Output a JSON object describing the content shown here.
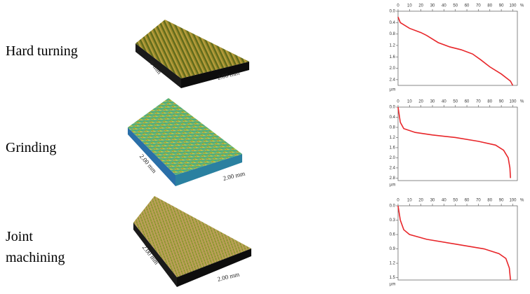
{
  "rows": [
    {
      "label": "Hard turning",
      "surface": {
        "edge_labels": [
          "2.00 mm",
          "2.00 mm"
        ]
      }
    },
    {
      "label": "Grinding",
      "surface": {
        "edge_labels": [
          "2.00 mm",
          "2.00 mm"
        ]
      }
    },
    {
      "label": "Joint machining",
      "surface": {
        "edge_labels": [
          "2.00 mm",
          "2.00 mm"
        ]
      }
    }
  ],
  "chart_data": [
    {
      "type": "line",
      "color": "#e8262a",
      "x_unit": "%",
      "y_unit": "µm",
      "xlim": [
        0,
        104
      ],
      "xticks": [
        0,
        10,
        20,
        30,
        40,
        50,
        60,
        70,
        80,
        90,
        100
      ],
      "ylim": [
        0,
        2.6
      ],
      "y_inverted": true,
      "yticks": [
        {
          "value": 0,
          "label": "0.0"
        },
        0.4,
        0.8,
        1.2,
        1.6,
        {
          "value": 2,
          "label": "2.0"
        },
        2.4
      ],
      "x": [
        0,
        2,
        10,
        20,
        25,
        35,
        45,
        55,
        65,
        72,
        80,
        90,
        98,
        100
      ],
      "values": [
        0.2,
        0.4,
        0.6,
        0.75,
        0.85,
        1.1,
        1.25,
        1.35,
        1.5,
        1.7,
        1.95,
        2.2,
        2.45,
        2.6
      ]
    },
    {
      "type": "line",
      "color": "#e8262a",
      "x_unit": "%",
      "y_unit": "µm",
      "xlim": [
        0,
        104
      ],
      "xticks": [
        0,
        10,
        20,
        30,
        40,
        50,
        60,
        70,
        80,
        90,
        100
      ],
      "ylim": [
        0,
        2.9
      ],
      "y_inverted": true,
      "yticks": [
        {
          "value": 0,
          "label": "0.0"
        },
        0.4,
        0.8,
        1.2,
        1.6,
        {
          "value": 2,
          "label": "2.0"
        },
        2.4,
        2.8
      ],
      "x": [
        0,
        2,
        5,
        15,
        30,
        50,
        70,
        85,
        92,
        96,
        97.5,
        98
      ],
      "values": [
        0,
        0.6,
        0.85,
        1.0,
        1.1,
        1.2,
        1.35,
        1.5,
        1.7,
        2.0,
        2.4,
        2.8
      ]
    },
    {
      "type": "line",
      "color": "#e8262a",
      "x_unit": "%",
      "y_unit": "µm",
      "xlim": [
        0,
        104
      ],
      "xticks": [
        0,
        10,
        20,
        30,
        40,
        50,
        60,
        70,
        80,
        90,
        100
      ],
      "ylim": [
        0,
        1.55
      ],
      "y_inverted": true,
      "yticks": [
        {
          "value": 0,
          "label": "0.0"
        },
        0.3,
        0.6,
        0.9,
        1.2,
        1.5
      ],
      "x": [
        0,
        2,
        5,
        10,
        25,
        50,
        75,
        88,
        94,
        97,
        98
      ],
      "values": [
        0,
        0.3,
        0.5,
        0.6,
        0.7,
        0.8,
        0.9,
        1.0,
        1.1,
        1.3,
        1.55
      ]
    }
  ]
}
